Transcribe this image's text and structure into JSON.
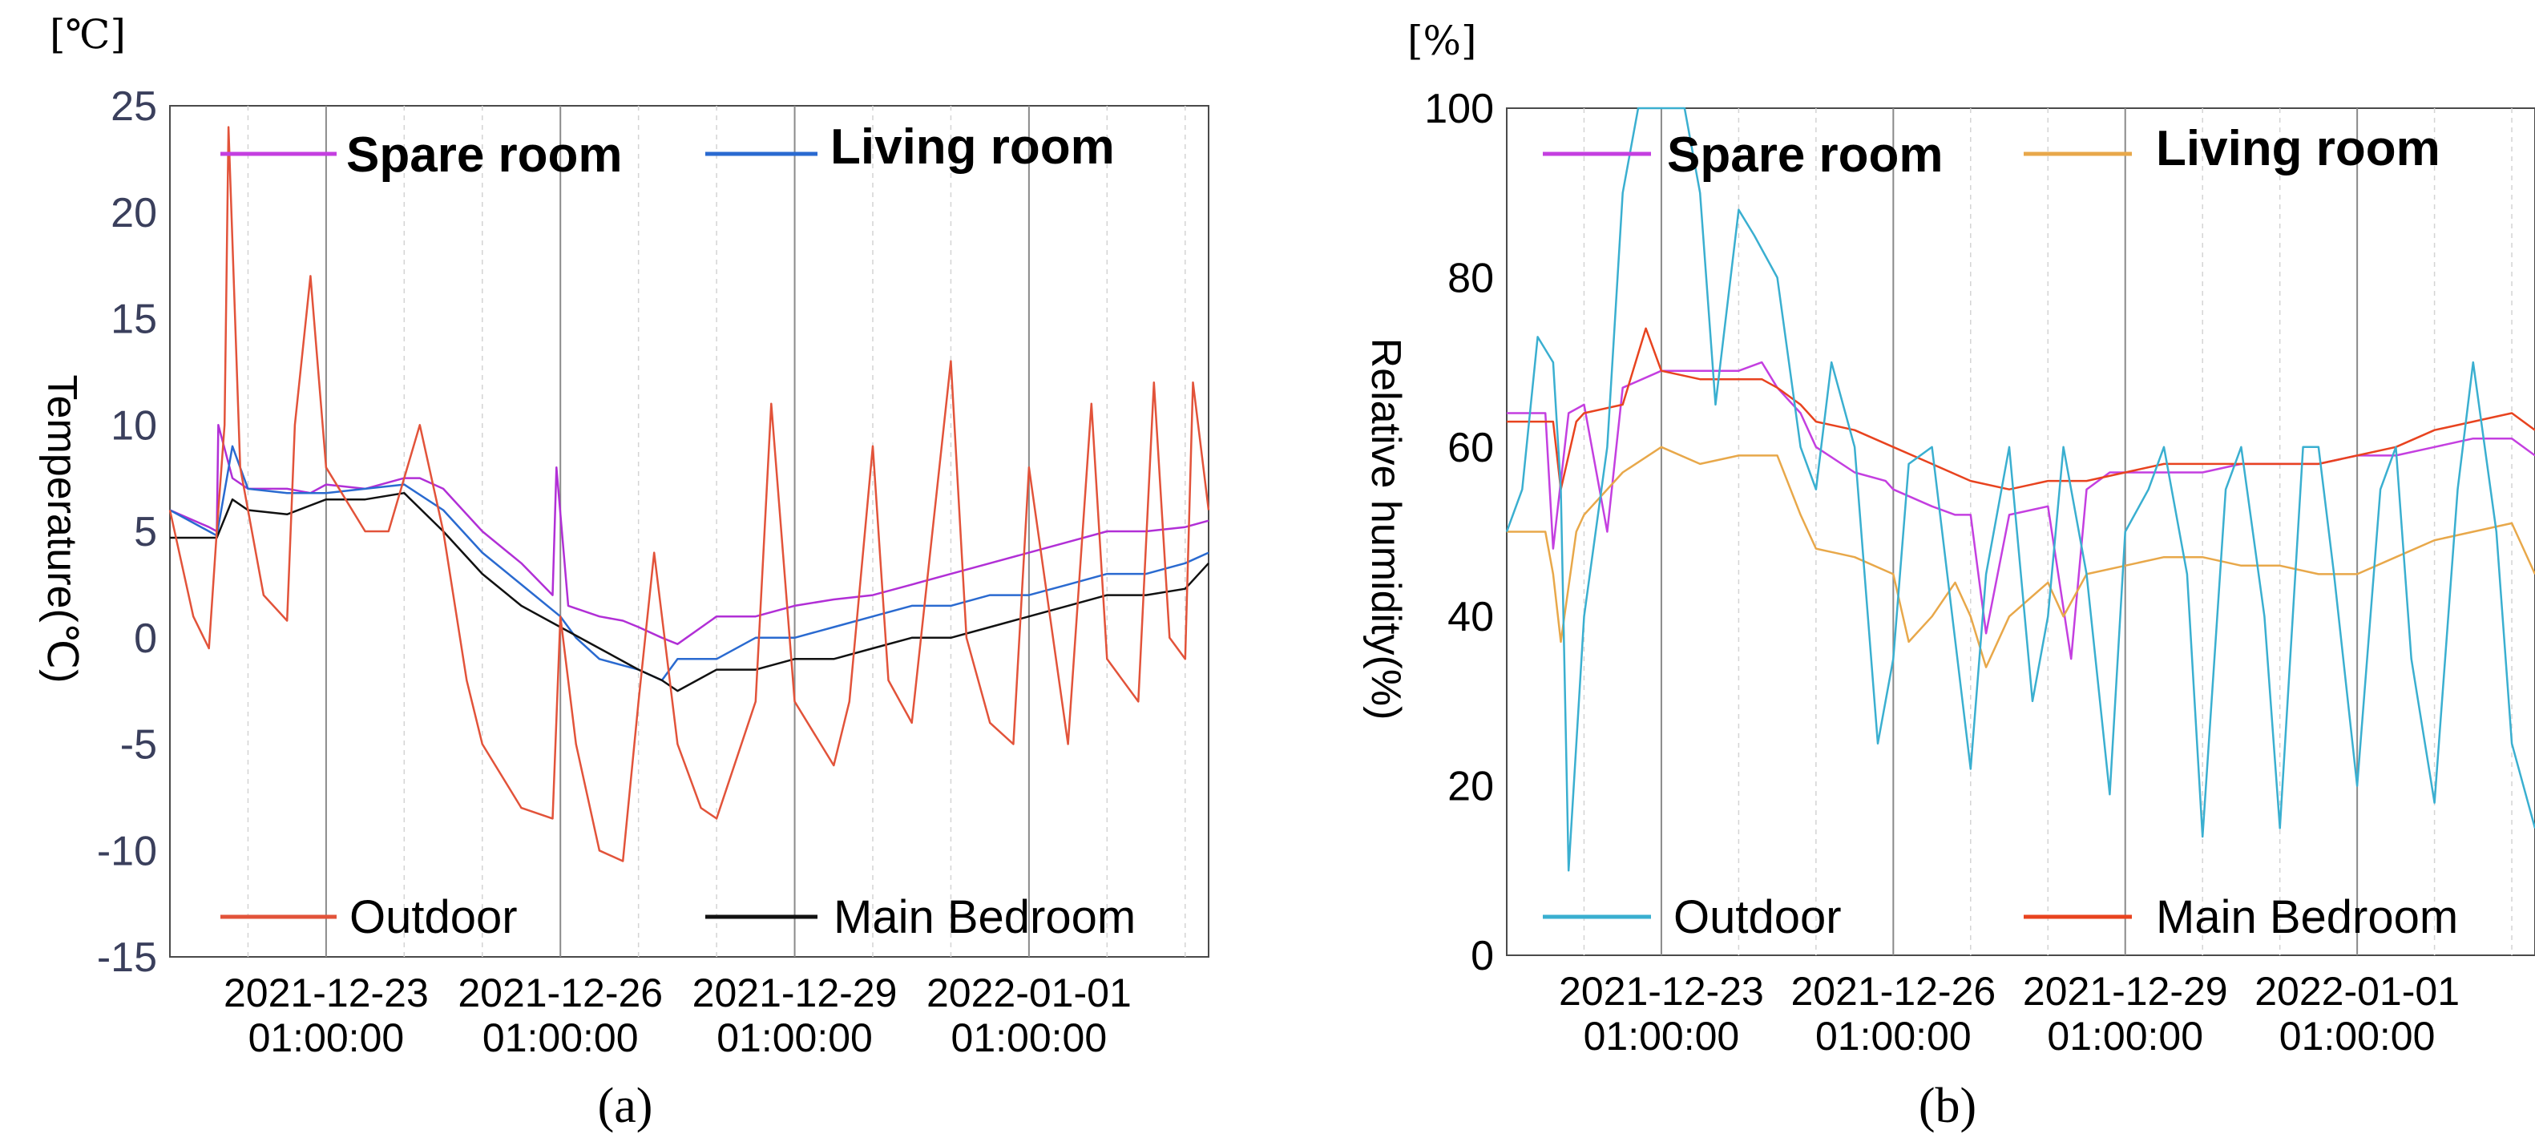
{
  "chart_data": [
    {
      "type": "line",
      "panel": "a",
      "caption": "(a)",
      "unit_label": "[℃]",
      "ylabel": "Temperature(℃)",
      "xlabel": "",
      "ylim": [
        -15,
        25
      ],
      "yticks": [
        25,
        20,
        15,
        10,
        5,
        0,
        -5,
        -10,
        -15
      ],
      "xlim": [
        0,
        13.3
      ],
      "xticks": [
        {
          "x": 2,
          "date": "2021-12-23",
          "time": "01:00:00"
        },
        {
          "x": 5,
          "date": "2021-12-26",
          "time": "01:00:00"
        },
        {
          "x": 8,
          "date": "2021-12-29",
          "time": "01:00:00"
        },
        {
          "x": 11,
          "date": "2022-01-01",
          "time": "01:00:00"
        }
      ],
      "grid": "vertical",
      "legend_top": [
        "Spare room",
        "Living room"
      ],
      "legend_bottom": [
        "Outdoor",
        "Main Bedroom"
      ],
      "series": [
        {
          "name": "Spare room",
          "color": "#b12fd6",
          "x": [
            0,
            0.5,
            0.6,
            0.62,
            0.8,
            1.0,
            1.5,
            1.8,
            2.0,
            2.5,
            3.0,
            3.2,
            3.5,
            4.0,
            4.5,
            4.9,
            4.95,
            5.1,
            5.5,
            5.8,
            6.0,
            6.3,
            6.5,
            7.0,
            7.5,
            8.0,
            8.5,
            9.0,
            9.5,
            10.0,
            10.5,
            11.0,
            11.5,
            12.0,
            12.5,
            13.0,
            13.3
          ],
          "y": [
            6,
            5.2,
            5,
            10,
            7.5,
            7,
            7,
            6.8,
            7.2,
            7,
            7.5,
            7.5,
            7,
            5,
            3.5,
            2,
            8,
            1.5,
            1,
            0.8,
            0.5,
            0,
            -0.3,
            1,
            1,
            1.5,
            1.8,
            2,
            2.5,
            3,
            3.5,
            4,
            4.5,
            5,
            5,
            5.2,
            5.5
          ]
        },
        {
          "name": "Living room",
          "color": "#2a6ad0",
          "x": [
            0,
            0.5,
            0.6,
            0.8,
            1.0,
            1.5,
            2.0,
            2.5,
            3.0,
            3.5,
            4.0,
            4.5,
            5.0,
            5.2,
            5.5,
            6.0,
            6.3,
            6.5,
            7.0,
            7.5,
            8.0,
            8.5,
            9.0,
            9.5,
            10.0,
            10.5,
            11.0,
            11.5,
            12.0,
            12.5,
            13.0,
            13.3
          ],
          "y": [
            6,
            5,
            4.8,
            9,
            7,
            6.8,
            6.8,
            7,
            7.2,
            6,
            4,
            2.5,
            1,
            0,
            -1,
            -1.5,
            -2,
            -1,
            -1,
            0,
            0,
            0.5,
            1,
            1.5,
            1.5,
            2,
            2,
            2.5,
            3,
            3,
            3.5,
            4
          ]
        },
        {
          "name": "Main Bedroom",
          "color": "#111111",
          "x": [
            0,
            0.5,
            0.6,
            0.8,
            1.0,
            1.5,
            2.0,
            2.5,
            3.0,
            3.5,
            4.0,
            4.5,
            5.0,
            5.5,
            6.0,
            6.3,
            6.5,
            7.0,
            7.5,
            8.0,
            8.5,
            9.0,
            9.5,
            10.0,
            10.5,
            11.0,
            11.5,
            12.0,
            12.5,
            13.0,
            13.3
          ],
          "y": [
            4.7,
            4.7,
            4.7,
            6.5,
            6,
            5.8,
            6.5,
            6.5,
            6.8,
            5,
            3,
            1.5,
            0.5,
            -0.5,
            -1.5,
            -2,
            -2.5,
            -1.5,
            -1.5,
            -1,
            -1,
            -0.5,
            0,
            0,
            0.5,
            1,
            1.5,
            2,
            2,
            2.3,
            3.5
          ]
        },
        {
          "name": "Outdoor",
          "color": "#e2533a",
          "x": [
            0,
            0.3,
            0.5,
            0.6,
            0.7,
            0.75,
            0.9,
            1.2,
            1.5,
            1.6,
            1.8,
            2.0,
            2.5,
            2.8,
            3.2,
            3.5,
            3.8,
            4.0,
            4.5,
            4.9,
            5.0,
            5.2,
            5.5,
            5.8,
            6.0,
            6.2,
            6.5,
            6.8,
            7.0,
            7.5,
            7.7,
            8.0,
            8.5,
            8.7,
            9.0,
            9.2,
            9.5,
            10.0,
            10.2,
            10.5,
            10.8,
            11.0,
            11.5,
            11.8,
            12.0,
            12.4,
            12.6,
            12.8,
            13.0,
            13.1,
            13.3
          ],
          "y": [
            6,
            1,
            -0.5,
            5,
            10,
            24,
            8,
            2,
            0.8,
            10,
            17,
            8,
            5,
            5,
            10,
            5,
            -2,
            -5,
            -8,
            -8.5,
            1,
            -5,
            -10,
            -10.5,
            -3,
            4,
            -5,
            -8,
            -8.5,
            -3,
            11,
            -3,
            -6,
            -3,
            9,
            -2,
            -4,
            13,
            0,
            -4,
            -5,
            8,
            -5,
            11,
            -1,
            -3,
            12,
            0,
            -1,
            12,
            6
          ]
        }
      ]
    },
    {
      "type": "line",
      "panel": "b",
      "caption": "(b)",
      "unit_label": "[%]",
      "ylabel": "Relative humidity(%)",
      "xlabel": "",
      "ylim": [
        0,
        100
      ],
      "yticks": [
        100,
        80,
        60,
        40,
        20,
        0
      ],
      "xlim": [
        0,
        13.3
      ],
      "xticks": [
        {
          "x": 2,
          "date": "2021-12-23",
          "time": "01:00:00"
        },
        {
          "x": 5,
          "date": "2021-12-26",
          "time": "01:00:00"
        },
        {
          "x": 8,
          "date": "2021-12-29",
          "time": "01:00:00"
        },
        {
          "x": 11,
          "date": "2022-01-01",
          "time": "01:00:00"
        }
      ],
      "grid": "vertical",
      "legend_top": [
        "Spare room",
        "Living room"
      ],
      "legend_bottom": [
        "Outdoor",
        "Main Bedroom"
      ],
      "series": [
        {
          "name": "Spare room",
          "color": "#c43fe0",
          "x": [
            0,
            0.5,
            0.6,
            0.8,
            1.0,
            1.3,
            1.5,
            2.0,
            2.5,
            3.0,
            3.3,
            3.5,
            3.8,
            4.0,
            4.5,
            4.9,
            5.0,
            5.5,
            5.8,
            6.0,
            6.2,
            6.5,
            7.0,
            7.3,
            7.5,
            7.8,
            8.0,
            8.5,
            9.0,
            9.5,
            10.0,
            10.5,
            11.0,
            11.5,
            12.0,
            12.5,
            13.0,
            13.3
          ],
          "y": [
            64,
            64,
            48,
            64,
            65,
            50,
            67,
            69,
            69,
            69,
            70,
            67,
            64,
            60,
            57,
            56,
            55,
            53,
            52,
            52,
            38,
            52,
            53,
            35,
            55,
            57,
            57,
            57,
            57,
            58,
            58,
            58,
            59,
            59,
            60,
            61,
            61,
            59
          ]
        },
        {
          "name": "Living room",
          "color": "#e8a84a",
          "x": [
            0,
            0.5,
            0.6,
            0.7,
            0.9,
            1.0,
            1.5,
            2.0,
            2.5,
            3.0,
            3.5,
            3.8,
            4.0,
            4.5,
            5.0,
            5.2,
            5.5,
            5.8,
            6.0,
            6.2,
            6.5,
            7.0,
            7.2,
            7.5,
            8.0,
            8.5,
            9.0,
            9.5,
            10.0,
            10.5,
            11.0,
            11.5,
            12.0,
            12.5,
            13.0,
            13.3
          ],
          "y": [
            50,
            50,
            45,
            37,
            50,
            52,
            57,
            60,
            58,
            59,
            59,
            52,
            48,
            47,
            45,
            37,
            40,
            44,
            40,
            34,
            40,
            44,
            40,
            45,
            46,
            47,
            47,
            46,
            46,
            45,
            45,
            47,
            49,
            50,
            51,
            45
          ]
        },
        {
          "name": "Main Bedroom",
          "color": "#e8431f",
          "x": [
            0,
            0.5,
            0.6,
            0.7,
            0.9,
            1.0,
            1.5,
            1.8,
            2.0,
            2.5,
            3.0,
            3.3,
            3.5,
            3.8,
            4.0,
            4.5,
            5.0,
            5.5,
            6.0,
            6.5,
            7.0,
            7.5,
            8.0,
            8.5,
            9.0,
            9.5,
            10.0,
            10.5,
            11.0,
            11.5,
            12.0,
            12.5,
            13.0,
            13.3
          ],
          "y": [
            63,
            63,
            63,
            55,
            63,
            64,
            65,
            74,
            69,
            68,
            68,
            68,
            67,
            65,
            63,
            62,
            60,
            58,
            56,
            55,
            56,
            56,
            57,
            58,
            58,
            58,
            58,
            58,
            59,
            60,
            62,
            63,
            64,
            62
          ]
        },
        {
          "name": "Outdoor",
          "color": "#3aafd0",
          "x": [
            0,
            0.2,
            0.4,
            0.6,
            0.7,
            0.8,
            1.0,
            1.3,
            1.5,
            1.7,
            2.0,
            2.3,
            2.5,
            2.7,
            3.0,
            3.2,
            3.5,
            3.8,
            4.0,
            4.2,
            4.5,
            4.8,
            5.0,
            5.2,
            5.5,
            6.0,
            6.2,
            6.5,
            6.8,
            7.0,
            7.2,
            7.5,
            7.8,
            8.0,
            8.3,
            8.5,
            8.8,
            9.0,
            9.3,
            9.5,
            9.8,
            10.0,
            10.3,
            10.5,
            10.7,
            11.0,
            11.3,
            11.5,
            11.7,
            12.0,
            12.3,
            12.5,
            12.8,
            13.0,
            13.3
          ],
          "y": [
            50,
            55,
            73,
            70,
            55,
            10,
            40,
            60,
            90,
            100,
            100,
            100,
            90,
            65,
            88,
            85,
            80,
            60,
            55,
            70,
            60,
            25,
            35,
            58,
            60,
            22,
            45,
            60,
            30,
            40,
            60,
            45,
            19,
            50,
            55,
            60,
            45,
            14,
            55,
            60,
            40,
            15,
            60,
            60,
            45,
            20,
            55,
            60,
            35,
            18,
            55,
            70,
            50,
            25,
            15
          ]
        }
      ]
    }
  ]
}
